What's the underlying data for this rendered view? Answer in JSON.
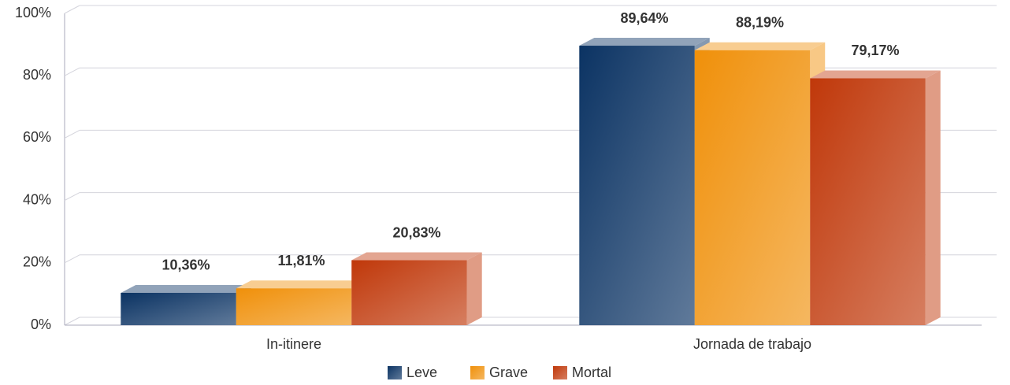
{
  "chart_data": {
    "type": "bar3d",
    "categories": [
      "In-itinere",
      "Jornada de trabajo"
    ],
    "series": [
      {
        "name": "Leve",
        "color": "#0b3363",
        "values": [
          10.36,
          89.64
        ],
        "value_labels": [
          "10,36%",
          "89,64%"
        ]
      },
      {
        "name": "Grave",
        "color": "#f0900a",
        "values": [
          11.81,
          88.19
        ],
        "value_labels": [
          "11,81%",
          "88,19%"
        ]
      },
      {
        "name": "Mortal",
        "color": "#c0380a",
        "values": [
          20.83,
          79.17
        ],
        "value_labels": [
          "20,83%",
          "79,17%"
        ]
      }
    ],
    "ylim": [
      0,
      100
    ],
    "yticks": [
      {
        "value": 0,
        "label": "0%"
      },
      {
        "value": 20,
        "label": "20%"
      },
      {
        "value": 40,
        "label": "40%"
      },
      {
        "value": 60,
        "label": "60%"
      },
      {
        "value": 80,
        "label": "80%"
      },
      {
        "value": 100,
        "label": "100%"
      }
    ],
    "grid": true,
    "legend": "bottom"
  }
}
